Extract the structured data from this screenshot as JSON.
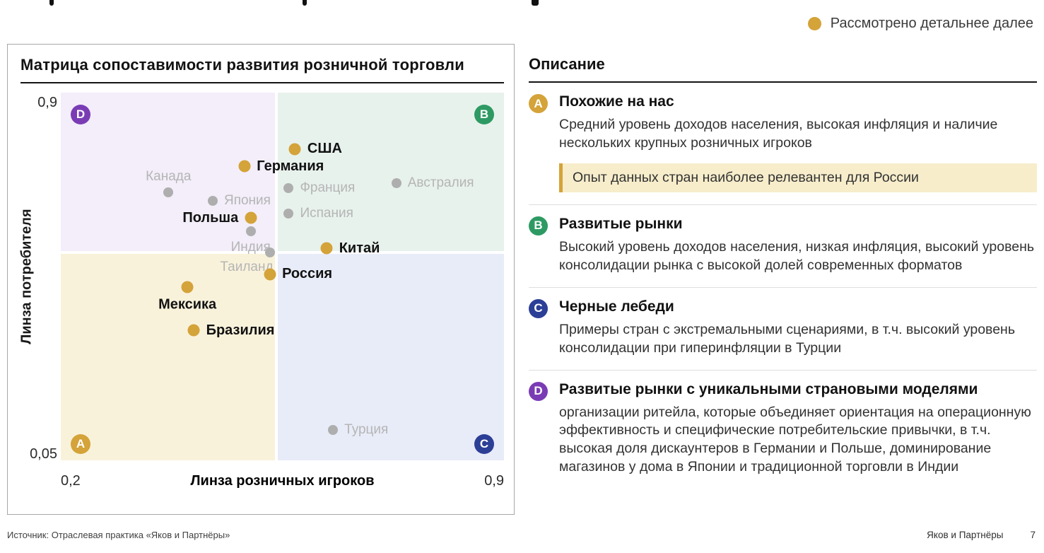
{
  "legend": {
    "label": "Рассмотрено детальнее далее",
    "dot_color": "#d4a339"
  },
  "chart": {
    "title": "Матрица сопоставимости развития розничной торговли",
    "x_label": "Линза розничных игроков",
    "y_label": "Линза потребителя",
    "x_min_label": "0,2",
    "x_max_label": "0,9",
    "y_min_label": "0,05",
    "y_max_label": "0,9"
  },
  "chart_data": {
    "type": "scatter",
    "title": "Матрица сопоставимости развития розничной торговли",
    "xlabel": "Линза розничных игроков",
    "ylabel": "Линза потребителя",
    "xlim": [
      0.2,
      0.9
    ],
    "ylim": [
      0.05,
      0.9
    ],
    "grid": false,
    "quadrant_split": {
      "x": 0.54,
      "y": 0.53
    },
    "quadrants": [
      {
        "id": "D",
        "position": "top-left",
        "color": "#7a3cb5",
        "bg": "#f3eef9"
      },
      {
        "id": "B",
        "position": "top-right",
        "color": "#2e9a63",
        "bg": "#e8f2ec"
      },
      {
        "id": "A",
        "position": "bottom-left",
        "color": "#d4a339",
        "bg": "#f9f2db"
      },
      {
        "id": "C",
        "position": "bottom-right",
        "color": "#2c3f96",
        "bg": "#e8ecf8"
      }
    ],
    "highlight_color": "#d4a339",
    "muted_color": "#aeaeae",
    "points": [
      {
        "name": "США",
        "x": 0.57,
        "y": 0.77,
        "highlighted": true,
        "label_pos": "right"
      },
      {
        "name": "Германия",
        "x": 0.49,
        "y": 0.73,
        "highlighted": true,
        "label_pos": "right"
      },
      {
        "name": "Канада",
        "x": 0.37,
        "y": 0.67,
        "highlighted": false,
        "label_pos": "above"
      },
      {
        "name": "Франция",
        "x": 0.56,
        "y": 0.68,
        "highlighted": false,
        "label_pos": "right"
      },
      {
        "name": "Австралия",
        "x": 0.73,
        "y": 0.69,
        "highlighted": false,
        "label_pos": "right"
      },
      {
        "name": "Япония",
        "x": 0.44,
        "y": 0.65,
        "highlighted": false,
        "label_pos": "right"
      },
      {
        "name": "Польша",
        "x": 0.5,
        "y": 0.61,
        "highlighted": true,
        "label_pos": "left"
      },
      {
        "name": "Испания",
        "x": 0.56,
        "y": 0.62,
        "highlighted": false,
        "label_pos": "right"
      },
      {
        "name": "Индия",
        "x": 0.5,
        "y": 0.58,
        "highlighted": false,
        "label_pos": "below"
      },
      {
        "name": "Таиланд",
        "x": 0.53,
        "y": 0.53,
        "highlighted": false,
        "label_pos": "below-left"
      },
      {
        "name": "Китай",
        "x": 0.62,
        "y": 0.54,
        "highlighted": true,
        "label_pos": "right"
      },
      {
        "name": "Россия",
        "x": 0.53,
        "y": 0.48,
        "highlighted": true,
        "label_pos": "right"
      },
      {
        "name": "Мексика",
        "x": 0.4,
        "y": 0.45,
        "highlighted": true,
        "label_pos": "below"
      },
      {
        "name": "Бразилия",
        "x": 0.41,
        "y": 0.35,
        "highlighted": true,
        "label_pos": "right"
      },
      {
        "name": "Турция",
        "x": 0.63,
        "y": 0.12,
        "highlighted": false,
        "label_pos": "right"
      }
    ]
  },
  "description": {
    "heading": "Описание",
    "items": [
      {
        "id": "A",
        "color": "#d4a339",
        "title": "Похожие на нас",
        "body": "Средний уровень доходов населения, высокая инфляция и наличие нескольких крупных розничных игроков",
        "callout": "Опыт данных стран наиболее релевантен для России"
      },
      {
        "id": "B",
        "color": "#2e9a63",
        "title": "Развитые рынки",
        "body": "Высокий уровень доходов населения, низкая инфляция, высокий уровень консолидации рынка с высокой долей современных форматов"
      },
      {
        "id": "C",
        "color": "#2c3f96",
        "title": "Черные лебеди",
        "body": "Примеры стран с экстремальными сценариями, в т.ч. высокий уровень консолидации при гиперинфляции в Турции"
      },
      {
        "id": "D",
        "color": "#7a3cb5",
        "title": "Развитые рынки с уникальными страновыми моделями",
        "body": "организации ритейла, которые объединяет ориентация на операционную эффективность и специфические потребительские привычки, в т.ч. высокая доля дискаунтеров в Германии и Польше, доминирование магазинов у дома в Японии и традиционной торговли в Индии"
      }
    ]
  },
  "footer": {
    "source": "Источник: Отраслевая практика «Яков и Партнёры»",
    "brand": "Яков и Партнёры",
    "page_number": "7"
  }
}
